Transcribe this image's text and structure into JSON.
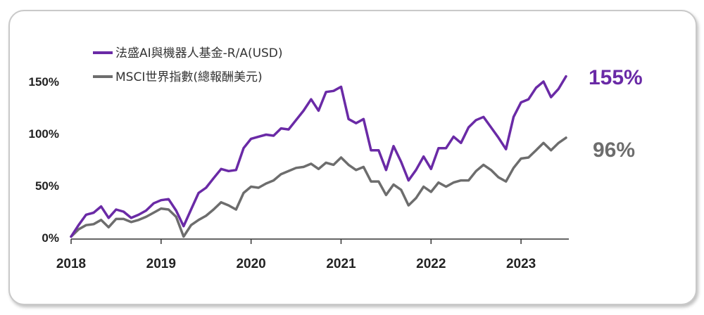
{
  "chart_data": {
    "type": "line",
    "title": "",
    "xlabel": "",
    "ylabel": "",
    "ylim": [
      0,
      160
    ],
    "xlim": [
      2018,
      2023.5
    ],
    "x_ticks": [
      "2018",
      "2019",
      "2020",
      "2021",
      "2022",
      "2023"
    ],
    "y_ticks": [
      "0%",
      "50%",
      "100%",
      "150%"
    ],
    "y_tick_values": [
      0,
      50,
      100,
      150
    ],
    "legend_position": "top-left",
    "series": [
      {
        "name": "法盛AI與機器人基金-R/A(USD)",
        "color": "#6a2aa6",
        "end_label": "155%",
        "x": [
          2018.0,
          2018.083,
          2018.167,
          2018.25,
          2018.333,
          2018.417,
          2018.5,
          2018.583,
          2018.667,
          2018.75,
          2018.833,
          2018.917,
          2019.0,
          2019.083,
          2019.167,
          2019.25,
          2019.333,
          2019.417,
          2019.5,
          2019.583,
          2019.667,
          2019.75,
          2019.833,
          2019.917,
          2020.0,
          2020.083,
          2020.167,
          2020.25,
          2020.333,
          2020.417,
          2020.5,
          2020.583,
          2020.667,
          2020.75,
          2020.833,
          2020.917,
          2021.0,
          2021.083,
          2021.167,
          2021.25,
          2021.333,
          2021.417,
          2021.5,
          2021.583,
          2021.667,
          2021.75,
          2021.833,
          2021.917,
          2022.0,
          2022.083,
          2022.167,
          2022.25,
          2022.333,
          2022.417,
          2022.5,
          2022.583,
          2022.667,
          2022.75,
          2022.833,
          2022.917,
          2023.0,
          2023.083,
          2023.167,
          2023.25,
          2023.333,
          2023.417,
          2023.5
        ],
        "values": [
          1,
          12,
          22,
          24,
          30,
          19,
          27,
          25,
          19,
          22,
          26,
          33,
          36,
          37,
          26,
          11,
          27,
          43,
          48,
          57,
          66,
          64,
          65,
          86,
          95,
          97,
          99,
          98,
          105,
          104,
          113,
          122,
          133,
          122,
          140,
          141,
          145,
          114,
          110,
          114,
          84,
          84,
          65,
          88,
          73,
          55,
          65,
          78,
          66,
          86,
          86,
          97,
          91,
          106,
          113,
          116,
          106,
          96,
          85,
          116,
          130,
          133,
          144,
          150,
          135,
          143,
          155
        ]
      },
      {
        "name": "MSCI世界指數(總報酬美元)",
        "color": "#6d6d6d",
        "end_label": "96%",
        "x": [
          2018.0,
          2018.083,
          2018.167,
          2018.25,
          2018.333,
          2018.417,
          2018.5,
          2018.583,
          2018.667,
          2018.75,
          2018.833,
          2018.917,
          2019.0,
          2019.083,
          2019.167,
          2019.25,
          2019.333,
          2019.417,
          2019.5,
          2019.583,
          2019.667,
          2019.75,
          2019.833,
          2019.917,
          2020.0,
          2020.083,
          2020.167,
          2020.25,
          2020.333,
          2020.417,
          2020.5,
          2020.583,
          2020.667,
          2020.75,
          2020.833,
          2020.917,
          2021.0,
          2021.083,
          2021.167,
          2021.25,
          2021.333,
          2021.417,
          2021.5,
          2021.583,
          2021.667,
          2021.75,
          2021.833,
          2021.917,
          2022.0,
          2022.083,
          2022.167,
          2022.25,
          2022.333,
          2022.417,
          2022.5,
          2022.583,
          2022.667,
          2022.75,
          2022.833,
          2022.917,
          2023.0,
          2023.083,
          2023.167,
          2023.25,
          2023.333,
          2023.417,
          2023.5
        ],
        "values": [
          1,
          8,
          12,
          13,
          17,
          10,
          18,
          18,
          15,
          17,
          20,
          24,
          28,
          27,
          20,
          1,
          12,
          17,
          21,
          27,
          34,
          31,
          27,
          43,
          49,
          48,
          52,
          55,
          61,
          64,
          67,
          68,
          71,
          66,
          72,
          70,
          77,
          70,
          65,
          68,
          54,
          54,
          41,
          51,
          46,
          31,
          38,
          49,
          44,
          53,
          49,
          53,
          55,
          55,
          64,
          70,
          65,
          58,
          54,
          67,
          76,
          77,
          84,
          91,
          84,
          91,
          96
        ]
      }
    ]
  }
}
